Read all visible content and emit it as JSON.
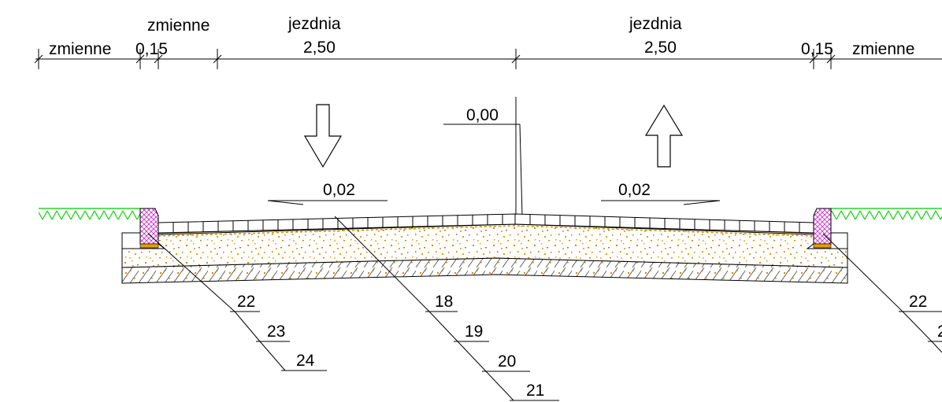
{
  "dimensions": {
    "left_outer": {
      "label": "zmienne"
    },
    "left_curb": {
      "label": "0,15"
    },
    "left_verge": {
      "label": "zmienne"
    },
    "left_lane": {
      "title": "jezdnia",
      "value": "2,50"
    },
    "right_lane": {
      "title": "jezdnia",
      "value": "2,50"
    },
    "right_curb": {
      "label": "0,15"
    },
    "right_outer": {
      "label": "zmienne"
    }
  },
  "levels": {
    "crown": "0,00",
    "slope_left": "0,02",
    "slope_right": "0,02"
  },
  "callouts": {
    "left": [
      "22",
      "23",
      "24"
    ],
    "center": [
      "18",
      "19",
      "20",
      "21"
    ],
    "right": [
      "22",
      "2"
    ]
  },
  "colors": {
    "grass": "#00cc00",
    "curb_hatch": "#cc33cc",
    "sand": "#cc8800",
    "line": "#000000"
  }
}
